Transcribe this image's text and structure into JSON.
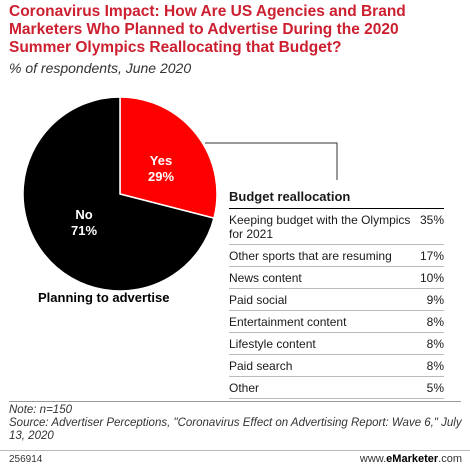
{
  "header": {
    "title": "Coronavirus Impact: How Are US Agencies and Brand Marketers Who Planned to Advertise During the 2020 Summer Olympics Reallocating that Budget?",
    "subtitle": "% of respondents, June 2020"
  },
  "pie": {
    "caption": "Planning to advertise",
    "yes_name": "Yes",
    "yes_value": "29%",
    "no_name": "No",
    "no_value": "71%"
  },
  "table": {
    "title": "Budget reallocation",
    "rows": [
      {
        "label": "Keeping budget with the Olympics for 2021",
        "value": "35%"
      },
      {
        "label": "Other sports that are resuming",
        "value": "17%"
      },
      {
        "label": "News content",
        "value": "10%"
      },
      {
        "label": "Paid social",
        "value": "9%"
      },
      {
        "label": "Entertainment content",
        "value": "8%"
      },
      {
        "label": "Lifestyle content",
        "value": "8%"
      },
      {
        "label": "Paid search",
        "value": "8%"
      },
      {
        "label": "Other",
        "value": "5%"
      }
    ]
  },
  "footer": {
    "note": "Note: n=150",
    "source": "Source: Advertiser Perceptions, \"Coronavirus Effect on Advertising Report: Wave 6,\" July 13, 2020",
    "chart_id": "256914",
    "brand_prefix": "www.",
    "brand_name": "eMarketer",
    "brand_suffix": ".com"
  },
  "colors": {
    "title": "#cc1f2f",
    "yes_slice": "#ff0000",
    "no_slice": "#000000"
  },
  "chart_data": [
    {
      "type": "pie",
      "title": "Planning to advertise",
      "categories": [
        "Yes",
        "No"
      ],
      "values": [
        29,
        71
      ]
    },
    {
      "type": "table",
      "title": "Budget reallocation",
      "categories": [
        "Keeping budget with the Olympics for 2021",
        "Other sports that are resuming",
        "News content",
        "Paid social",
        "Entertainment content",
        "Lifestyle content",
        "Paid search",
        "Other"
      ],
      "values": [
        35,
        17,
        10,
        9,
        8,
        8,
        8,
        5
      ]
    }
  ]
}
